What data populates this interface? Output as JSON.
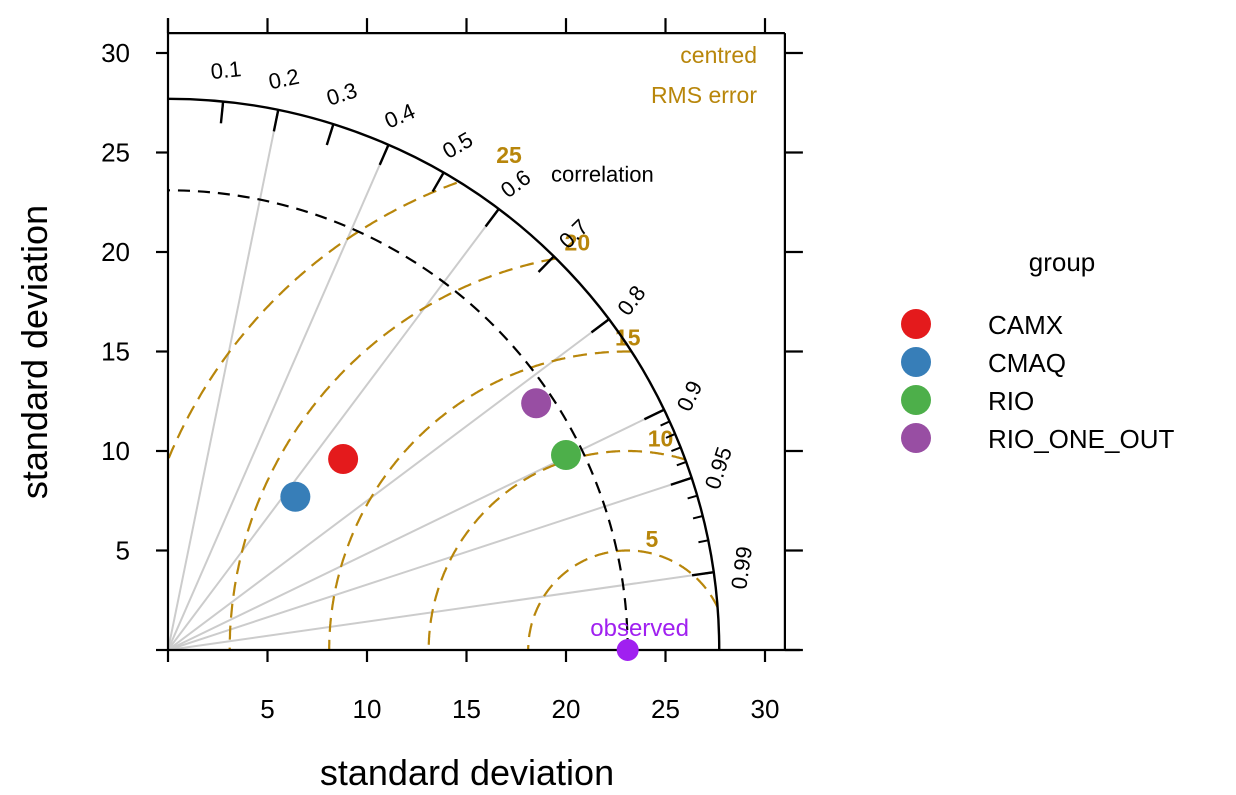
{
  "chart_data": {
    "type": "scatter",
    "subtype": "taylor-diagram",
    "xlabel": "standard deviation",
    "ylabel": "standard deviation",
    "xlim": [
      0,
      31
    ],
    "ylim": [
      0,
      31
    ],
    "x_ticks": [
      5,
      10,
      15,
      20,
      25,
      30
    ],
    "y_ticks": [
      5,
      10,
      15,
      20,
      25,
      30
    ],
    "max_sd": 27.7,
    "reference": {
      "label": "observed",
      "sd": 23.1,
      "color": "#a020f0"
    },
    "correlation_title": "correlation",
    "correlation_ticks": [
      0.1,
      0.2,
      0.3,
      0.4,
      0.5,
      0.6,
      0.7,
      0.8,
      0.9,
      0.95,
      0.99
    ],
    "correlation_tick_labels": [
      "0.1",
      "0.2",
      "0.3",
      "0.4",
      "0.5",
      "0.6",
      "0.7",
      "0.8",
      "0.9",
      "0.95",
      "0.99"
    ],
    "correlation_gridlines": [
      0.2,
      0.4,
      0.6,
      0.8,
      0.9,
      0.95,
      0.99
    ],
    "rms_title_lines": [
      "centred",
      "RMS error"
    ],
    "rms_contours": [
      5,
      10,
      15,
      20,
      25
    ],
    "rms_labels": [
      "5",
      "10",
      "15",
      "20",
      "25"
    ],
    "rms_color": "#b8860b",
    "legend_title": "group",
    "series": [
      {
        "name": "CAMX",
        "x": 8.8,
        "y": 9.6,
        "color": "#e41a1c"
      },
      {
        "name": "CMAQ",
        "x": 6.4,
        "y": 7.7,
        "color": "#377eb8"
      },
      {
        "name": "RIO",
        "x": 20.0,
        "y": 9.8,
        "color": "#4daf4a"
      },
      {
        "name": "RIO_ONE_OUT",
        "x": 18.5,
        "y": 12.4,
        "color": "#984ea3"
      }
    ]
  }
}
